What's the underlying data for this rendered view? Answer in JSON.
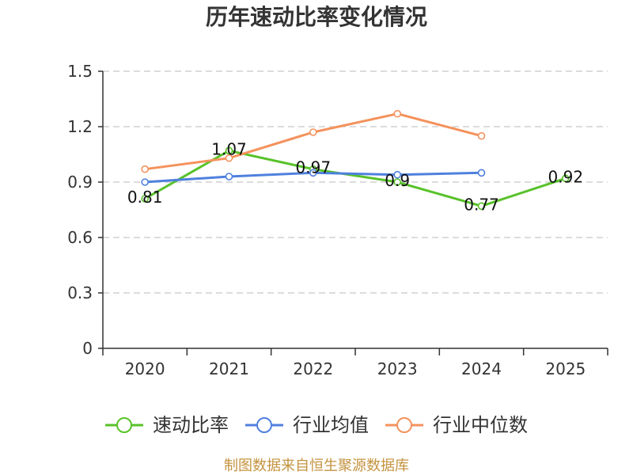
{
  "chart_data": {
    "type": "line",
    "title": "历年速动比率变化情况",
    "xlabel": "",
    "ylabel": "",
    "categories": [
      "2020",
      "2021",
      "2022",
      "2023",
      "2024",
      "2025"
    ],
    "ylim": [
      0,
      1.5
    ],
    "y_ticks": [
      0,
      0.3,
      0.6,
      0.9,
      1.2,
      1.5
    ],
    "grid": true,
    "series": [
      {
        "name": "速动比率",
        "color": "#58c22a",
        "show_labels": true,
        "values": [
          0.81,
          1.07,
          0.97,
          0.9,
          0.77,
          0.92
        ]
      },
      {
        "name": "行业均值",
        "color": "#4f80de",
        "show_labels": false,
        "values": [
          0.9,
          0.93,
          0.95,
          0.94,
          0.95,
          null
        ]
      },
      {
        "name": "行业中位数",
        "color": "#f4925c",
        "show_labels": false,
        "values": [
          0.97,
          1.03,
          1.17,
          1.27,
          1.15,
          null
        ]
      }
    ]
  },
  "footer": {
    "source": "制图数据来自恒生聚源数据库",
    "color": "#c4933f"
  }
}
